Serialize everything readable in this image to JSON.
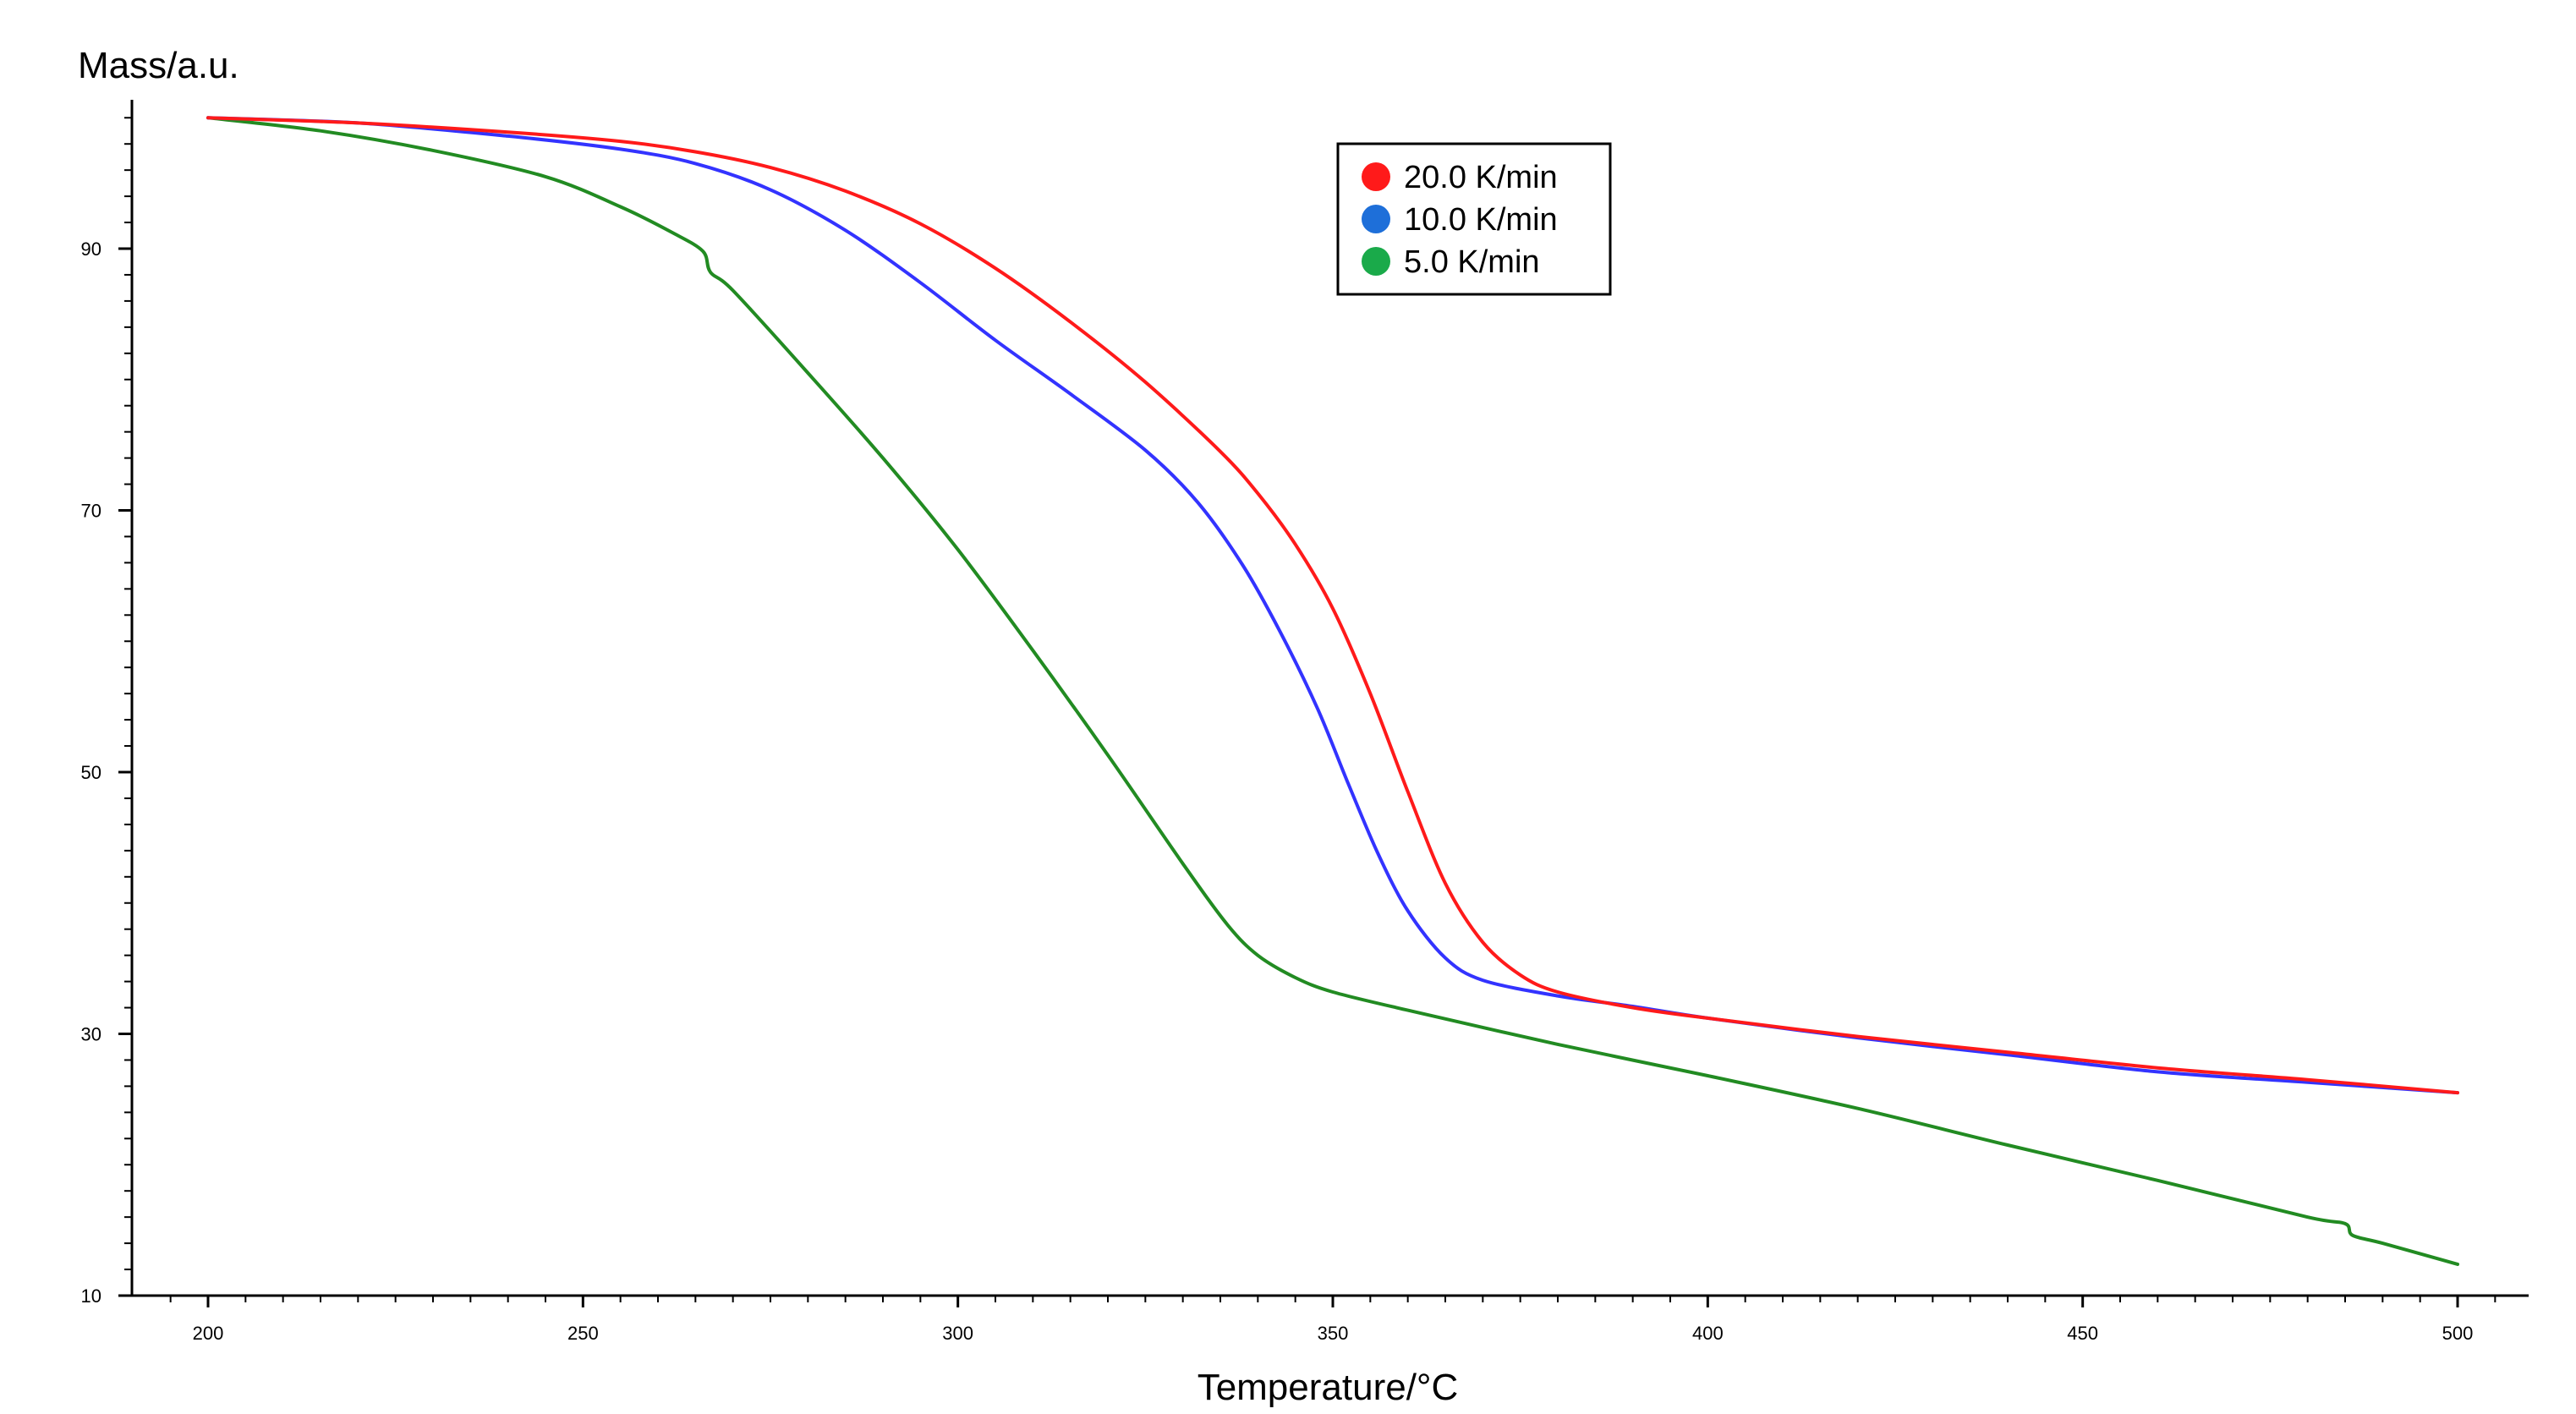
{
  "chart_data": {
    "type": "line",
    "title": "",
    "xlabel": "Temperature/°C",
    "ylabel": "Mass/a.u.",
    "xlim": [
      192,
      510
    ],
    "ylim": [
      10,
      101
    ],
    "x_ticks": [
      200,
      250,
      300,
      350,
      400,
      450,
      500
    ],
    "y_ticks": [
      10,
      30,
      50,
      70,
      90
    ],
    "grid": false,
    "legend_position": "top-center",
    "series": [
      {
        "name": "20.0 K/min",
        "color": "#ff1a1a",
        "x": [
          200,
          220,
          240,
          255,
          265,
          275,
          285,
          295,
          305,
          315,
          325,
          335,
          340,
          345,
          350,
          355,
          360,
          365,
          370,
          375,
          380,
          390,
          400,
          420,
          440,
          460,
          480,
          500
        ],
        "y": [
          100,
          99.6,
          98.9,
          98.2,
          97.4,
          96.2,
          94.4,
          91.9,
          88.5,
          84.4,
          79.8,
          74.5,
          71.3,
          67.4,
          62.5,
          56.0,
          48.5,
          41.5,
          37.0,
          34.5,
          33.2,
          32.0,
          31.2,
          29.8,
          28.6,
          27.4,
          26.5,
          25.5
        ]
      },
      {
        "name": "10.0 K/min",
        "color": "#3333ff",
        "x": [
          200,
          220,
          240,
          255,
          265,
          275,
          285,
          295,
          305,
          315,
          325,
          332,
          338,
          343,
          348,
          352,
          356,
          360,
          365,
          370,
          380,
          390,
          400,
          420,
          440,
          460,
          480,
          500
        ],
        "y": [
          100,
          99.6,
          98.6,
          97.6,
          96.5,
          94.5,
          91.4,
          87.4,
          83.0,
          78.9,
          74.6,
          70.6,
          65.8,
          60.7,
          54.8,
          49.2,
          43.8,
          39.4,
          35.8,
          34.1,
          32.9,
          32.1,
          31.2,
          29.7,
          28.4,
          27.1,
          26.3,
          25.5
        ]
      },
      {
        "name": "5.0 K/min",
        "color": "#228b22",
        "x": [
          200,
          215,
          230,
          245,
          255,
          262,
          266,
          267,
          270,
          280,
          290,
          300,
          310,
          320,
          330,
          336,
          340,
          345,
          350,
          360,
          380,
          400,
          420,
          440,
          460,
          480,
          485,
          486,
          490,
          500
        ],
        "y": [
          100,
          99.0,
          97.5,
          95.5,
          93.2,
          91.2,
          89.8,
          88.2,
          86.8,
          80.5,
          74.0,
          67.0,
          59.3,
          51.3,
          43.0,
          38.3,
          36.0,
          34.3,
          33.2,
          31.8,
          29.2,
          26.8,
          24.3,
          21.5,
          18.8,
          16.0,
          15.5,
          14.6,
          14.0,
          12.4
        ]
      }
    ]
  }
}
